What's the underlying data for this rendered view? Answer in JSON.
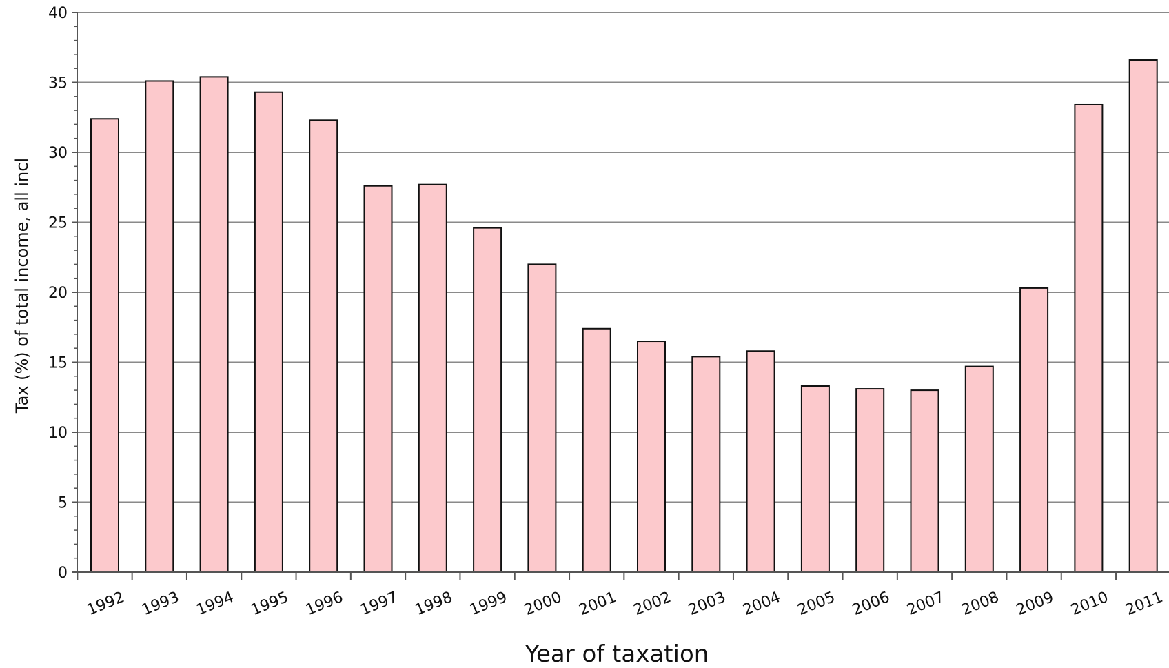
{
  "chart_data": {
    "type": "bar",
    "xlabel": "Year of taxation",
    "ylabel": "Tax (%) of total income, all incl",
    "ylim": [
      0,
      40
    ],
    "yticks": [
      0,
      5,
      10,
      15,
      20,
      25,
      30,
      35,
      40
    ],
    "grid": true,
    "categories": [
      "1992",
      "1993",
      "1994",
      "1995",
      "1996",
      "1997",
      "1998",
      "1999",
      "2000",
      "2001",
      "2002",
      "2003",
      "2004",
      "2005",
      "2006",
      "2007",
      "2008",
      "2009",
      "2010",
      "2011"
    ],
    "values": [
      32.4,
      35.1,
      35.4,
      34.3,
      32.3,
      27.6,
      27.7,
      24.6,
      22.0,
      17.4,
      16.5,
      15.4,
      15.8,
      13.3,
      13.1,
      13.0,
      14.7,
      20.3,
      33.4,
      36.6
    ]
  },
  "colors": {
    "bar_fill": "#fcc9cc",
    "bar_stroke": "#111111",
    "grid": "#8a8a8a",
    "axis": "#555555"
  }
}
